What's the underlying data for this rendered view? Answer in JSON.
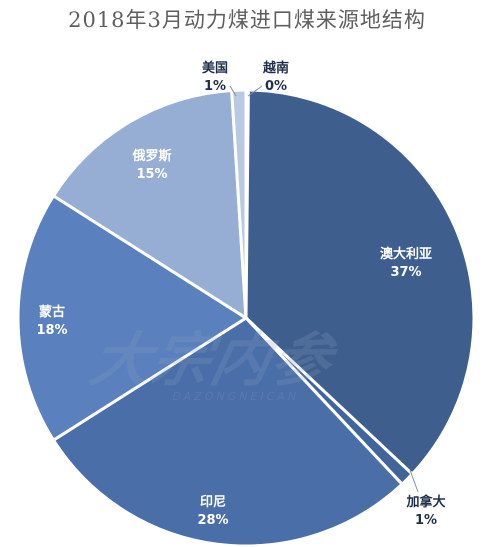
{
  "chart_data": {
    "type": "pie",
    "title": "2018年3月动力煤进口煤来源地结构",
    "start_angle_deg": 0,
    "direction": "clockwise",
    "slices": [
      {
        "name": "澳大利亚",
        "value": 37,
        "label_value": "37%",
        "color": "#3e5f8e"
      },
      {
        "name": "加拿大",
        "value": 1,
        "label_value": "1%",
        "color": "#41649a"
      },
      {
        "name": "印尼",
        "value": 28,
        "label_value": "28%",
        "color": "#4a6ea8"
      },
      {
        "name": "蒙古",
        "value": 18,
        "label_value": "18%",
        "color": "#5a80bd"
      },
      {
        "name": "俄罗斯",
        "value": 15,
        "label_value": "15%",
        "color": "#96aed3"
      },
      {
        "name": "美国",
        "value": 1,
        "label_value": "1%",
        "color": "#b9c9e2"
      },
      {
        "name": "越南",
        "value": 0,
        "label_value": "0%",
        "color": "#d6e0ef"
      }
    ]
  },
  "watermark": {
    "text": "大宗内参",
    "subtext": "DAZONGNEICAN"
  }
}
